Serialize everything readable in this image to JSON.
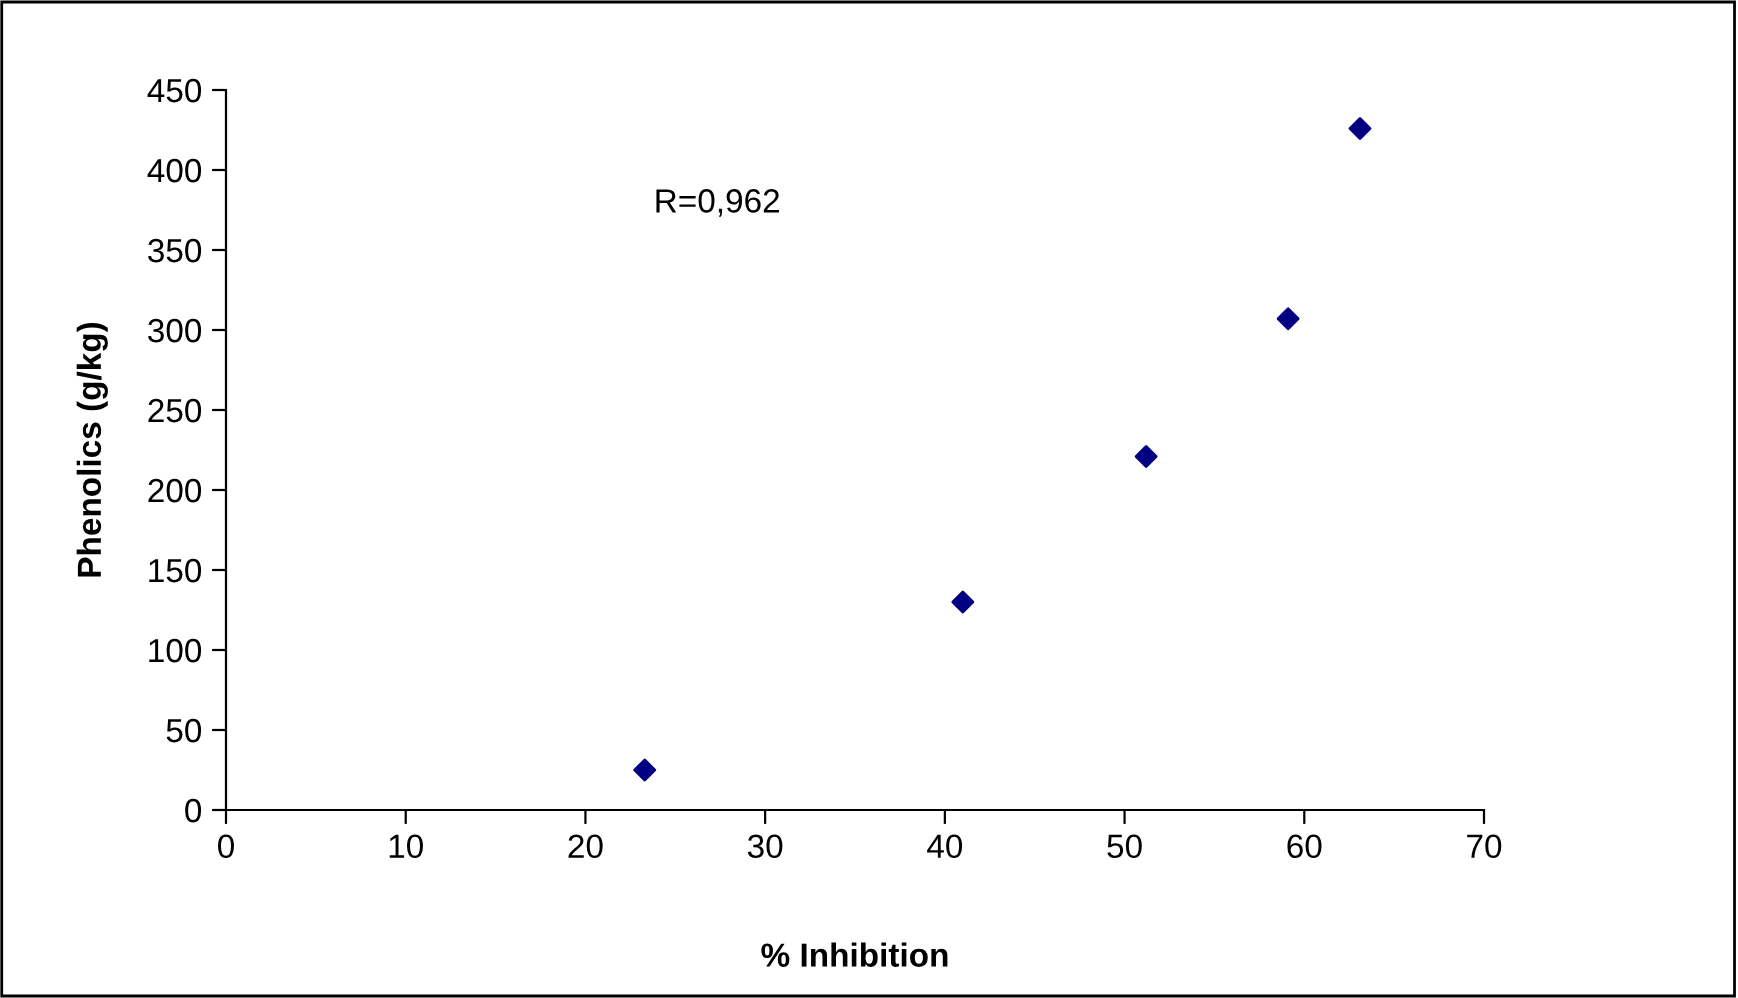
{
  "chart_data": {
    "type": "scatter",
    "xlabel": "% Inhibition",
    "ylabel": "Phenolics (g/kg)",
    "x": [
      23.3,
      41.0,
      51.2,
      59.1,
      63.1
    ],
    "series": [
      {
        "color": "#000080",
        "values": [
          25,
          130,
          221,
          307,
          426
        ]
      }
    ],
    "annotations": [
      "R=0,962"
    ],
    "xlim": [
      0,
      70
    ],
    "xticks": [
      0,
      10,
      20,
      30,
      40,
      50,
      60,
      70
    ],
    "ylim": [
      0,
      450
    ],
    "yticks": [
      0,
      50,
      100,
      150,
      200,
      250,
      300,
      350,
      400,
      450
    ],
    "marker": "diamond",
    "grid": false,
    "legend": false
  }
}
